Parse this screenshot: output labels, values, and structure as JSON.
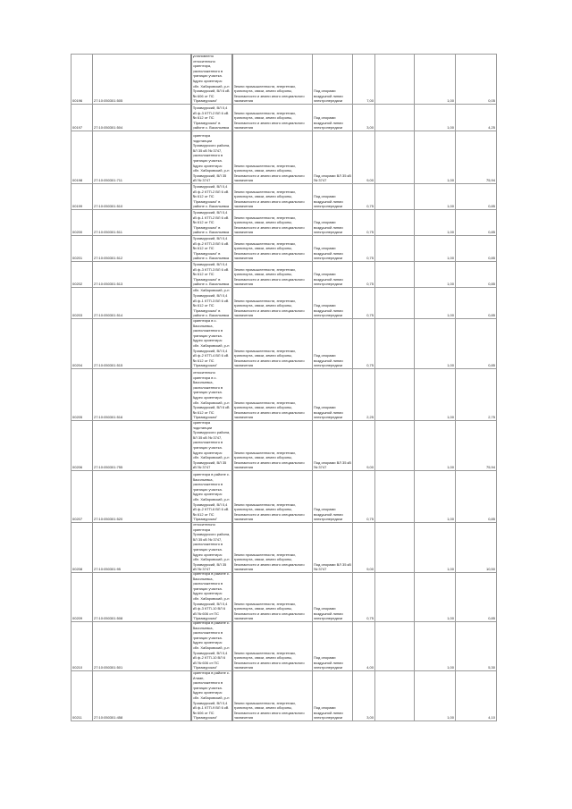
{
  "table": {
    "rows": [
      {
        "id": "00196",
        "cad": "27:10:050301:505",
        "desc": "установлено относительно ориентира, расположенного в границах участка. Адрес ориентира: обл. Хабаровский, р-н Приамурский, ВЛ 6 кВ № 606 от ПС \"Приамурская\"",
        "cat": "Земли промышленности, энергетики, транспорта, связи, земли обороны, безопасности и земли иного специального назначения",
        "use": "Под опорами воздушной линии электропередачи",
        "area": "7,00",
        "k": "1,00",
        "v": "0,05"
      },
      {
        "id": "00197",
        "cad": "27:10:050301:504",
        "desc": "обл. Хабаровский, р-н Приамурский, ВЛ 0,4 кВ ф-3 КТП-2 ВЛ 6 кВ № 612 от ПС \"Приамурская\" в районе с. Васильевка",
        "cat": "Земли промышленности, энергетики, транспорта, связи, земли обороны, безопасности и земли иного специального назначения",
        "use": "Под опорами воздушной линии электропередачи",
        "area": "3,00",
        "k": "1,00",
        "v": "4,25"
      },
      {
        "id": "00198",
        "cad": "27:10:050301:711",
        "desc": "установлено относительно ориентира подстанции Приамурского района, ВЛ 35 кВ № 3747, расположенного в границах участка. Адрес ориентира: обл. Хабаровский, р-н Приамурский, ВЛ 35 кВ № 3747",
        "cat": "Земли промышленности, энергетики, транспорта, связи, земли обороны, безопасности и земли иного специального назначения",
        "use": "Под опорами ВЛ 35 кВ № 3747",
        "area": "9,00",
        "k": "1,00",
        "v": "75,94"
      },
      {
        "id": "00199",
        "cad": "27:10:050301:510",
        "desc": "обл. Хабаровский, р-н Приамурский, ВЛ 0,4 кВ ф-2 КТП-2 ВЛ 6 кВ № 612 от ПС \"Приамурская\" в районе с. Васильевка",
        "cat": "Земли промышленности, энергетики, транспорта, связи, земли обороны, безопасности и земли иного специального назначения",
        "use": "Под опорами воздушной линии электропередачи",
        "area": "0,75",
        "k": "1,00",
        "v": "0,85"
      },
      {
        "id": "00200",
        "cad": "27:10:050301:511",
        "desc": "обл. Хабаровский, р-н Приамурский, ВЛ 0,4 кВ ф-1 КТП-2 ВЛ 6 кВ № 612 от ПС \"Приамурская\" в районе с. Васильевка",
        "cat": "Земли промышленности, энергетики, транспорта, связи, земли обороны, безопасности и земли иного специального назначения",
        "use": "Под опорами воздушной линии электропередачи",
        "area": "0,75",
        "k": "1,00",
        "v": "0,85"
      },
      {
        "id": "00201",
        "cad": "27:10:050301:512",
        "desc": "обл. Хабаровский, р-н Приамурский, ВЛ 0,4 кВ ф-2 КТП-3 ВЛ 6 кВ № 612 от ПС \"Приамурская\" в районе с. Васильевка",
        "cat": "Земли промышленности, энергетики, транспорта, связи, земли обороны, безопасности и земли иного специального назначения",
        "use": "Под опорами воздушной линии электропередачи",
        "area": "0,75",
        "k": "1,00",
        "v": "0,85"
      },
      {
        "id": "00202",
        "cad": "27:10:050301:513",
        "desc": "обл. Хабаровский, р-н Приамурский, ВЛ 0,4 кВ ф-3 КТП-3 ВЛ 6 кВ № 612 от ПС \"Приамурская\" в районе с. Васильевка",
        "cat": "Земли промышленности, энергетики, транспорта, связи, земли обороны, безопасности и земли иного специального назначения",
        "use": "Под опорами воздушной линии электропередачи",
        "area": "0,75",
        "k": "1,00",
        "v": "0,85"
      },
      {
        "id": "00203",
        "cad": "27:10:050301:514",
        "desc": "обл. Хабаровский, р-н Приамурский, ВЛ 0,4 кВ ф-1 КТП-3 ВЛ 6 кВ № 612 от ПС \"Приамурская\" в районе с. Васильевка",
        "cat": "Земли промышленности, энергетики, транспорта, связи, земли обороны, безопасности и земли иного специального назначения",
        "use": "Под опорами воздушной линии электропередачи",
        "area": "0,75",
        "k": "1,00",
        "v": "0,85"
      },
      {
        "id": "00204",
        "cad": "27:10:050301:515",
        "desc": "установлено относительно ориентира в с. Васильевка, расположенного в границах участка. Адрес ориентира: обл. Хабаровский, р-н Приамурский, ВЛ 0,4 кВ ф-2 КТП-4 ВЛ 6 кВ № 612 от ПС \"Приамурская\"",
        "cat": "Земли промышленности, энергетики, транспорта, связи, земли обороны, безопасности и земли иного специального назначения",
        "use": "Под опорами воздушной линии электропередачи",
        "area": "0,75",
        "k": "1,00",
        "v": "0,85"
      },
      {
        "id": "00205",
        "cad": "27:10:050301:516",
        "desc": "установлено относительно ориентира в с. Васильевка, расположенного в границах участка. Адрес ориентира: обл. Хабаровский, р-н Приамурский, ВЛ 6 кВ № 612 от ПС \"Приамурская\"",
        "cat": "Земли промышленности, энергетики, транспорта, связи, земли обороны, безопасности и земли иного специального назначения",
        "use": "Под опорами воздушной линии электропередачи",
        "area": "2,25",
        "k": "1,00",
        "v": "2,75"
      },
      {
        "id": "00206",
        "cad": "27:10:050301:755",
        "desc": "установлено относительно ориентира подстанции Приамурского района, ВЛ 35 кВ № 3747, расположенного в границах участка. Адрес ориентира: обл. Хабаровский, р-н Приамурский, ВЛ 35 кВ № 3747",
        "cat": "Земли промышленности, энергетики, транспорта, связи, земли обороны, безопасности и земли иного специального назначения",
        "use": "Под опорами ВЛ 35 кВ № 3747",
        "area": "9,00",
        "k": "1,00",
        "v": "75,94"
      },
      {
        "id": "00207",
        "cad": "27:10:050301:520",
        "desc": "установлено относительно ориентира в районе с. Васильевка, расположенного в границах участка. Адрес ориентира: обл. Хабаровский, р-н Приамурский, ВЛ 0,4 кВ ф-2 КТП-6 ВЛ 6 кВ № 612 от ПС \"Приамурская\"",
        "cat": "Земли промышленности, энергетики, транспорта, связи, земли обороны, безопасности и земли иного специального назначения",
        "use": "Под опорами воздушной линии электропередачи",
        "area": "0,75",
        "k": "1,00",
        "v": "0,85"
      },
      {
        "id": "00208",
        "cad": "27:10:050301:95",
        "desc": "установлено относительно ориентира Приамурского района, ВЛ 35 кВ № 3747, расположенного в границах участка. Адрес ориентира: обл. Хабаровский, р-н Приамурский, ВЛ 35 кВ № 3747",
        "cat": "Земли промышленности, энергетики, транспорта, связи, земли обороны, безопасности и земли иного специального назначения",
        "use": "Под опорами ВЛ 35 кВ № 3747",
        "area": "9,00",
        "k": "1,00",
        "v": "10,50"
      },
      {
        "id": "00209",
        "cad": "27:10:050301:508",
        "desc": "установлено относительно ориентира в районе с. Васильевка, расположенного в границах участка. Адрес ориентира: обл. Хабаровский, р-н Приамурский, ВЛ 0,4 кВ ф-3 КТП-10 ВЛ 6 кВ № 606 от ПС \"Приамурская\"",
        "cat": "Земли промышленности, энергетики, транспорта, связи, земли обороны, безопасности и земли иного специального назначения",
        "use": "Под опорами воздушной линии электропередачи",
        "area": "0,75",
        "k": "1,00",
        "v": "0,85"
      },
      {
        "id": "00210",
        "cad": "27:10:050301:501",
        "desc": "установлено относительно ориентира в районе с. Васильевка, расположенного в границах участка. Адрес ориентира: обл. Хабаровский, р-н Приамурский, ВЛ 0,4 кВ ф-2 КТП-10 ВЛ 6 кВ № 606 от ПС \"Приамурская\"",
        "cat": "Земли промышленности, энергетики, транспорта, связи, земли обороны, безопасности и земли иного специального назначения",
        "use": "Под опорами воздушной линии электропередачи",
        "area": "4,00",
        "k": "1,00",
        "v": "5,30"
      },
      {
        "id": "00211",
        "cad": "27:10:050301:458",
        "desc": "установлено относительно ориентира в районе с. Илиан, расположенного в границах участка. Адрес ориентира: обл. Хабаровский, р-н Приамурский, ВЛ 0,4 кВ ф-1 КТП-9 ВЛ 6 кВ № 606 от ПС \"Приамурская\"",
        "cat": "Земли промышленности, энергетики, транспорта, связи, земли обороны, безопасности и земли иного специального назначения",
        "use": "Под опорами воздушной линии электропередачи",
        "area": "3,00",
        "k": "1,00",
        "v": "4,10"
      }
    ]
  }
}
